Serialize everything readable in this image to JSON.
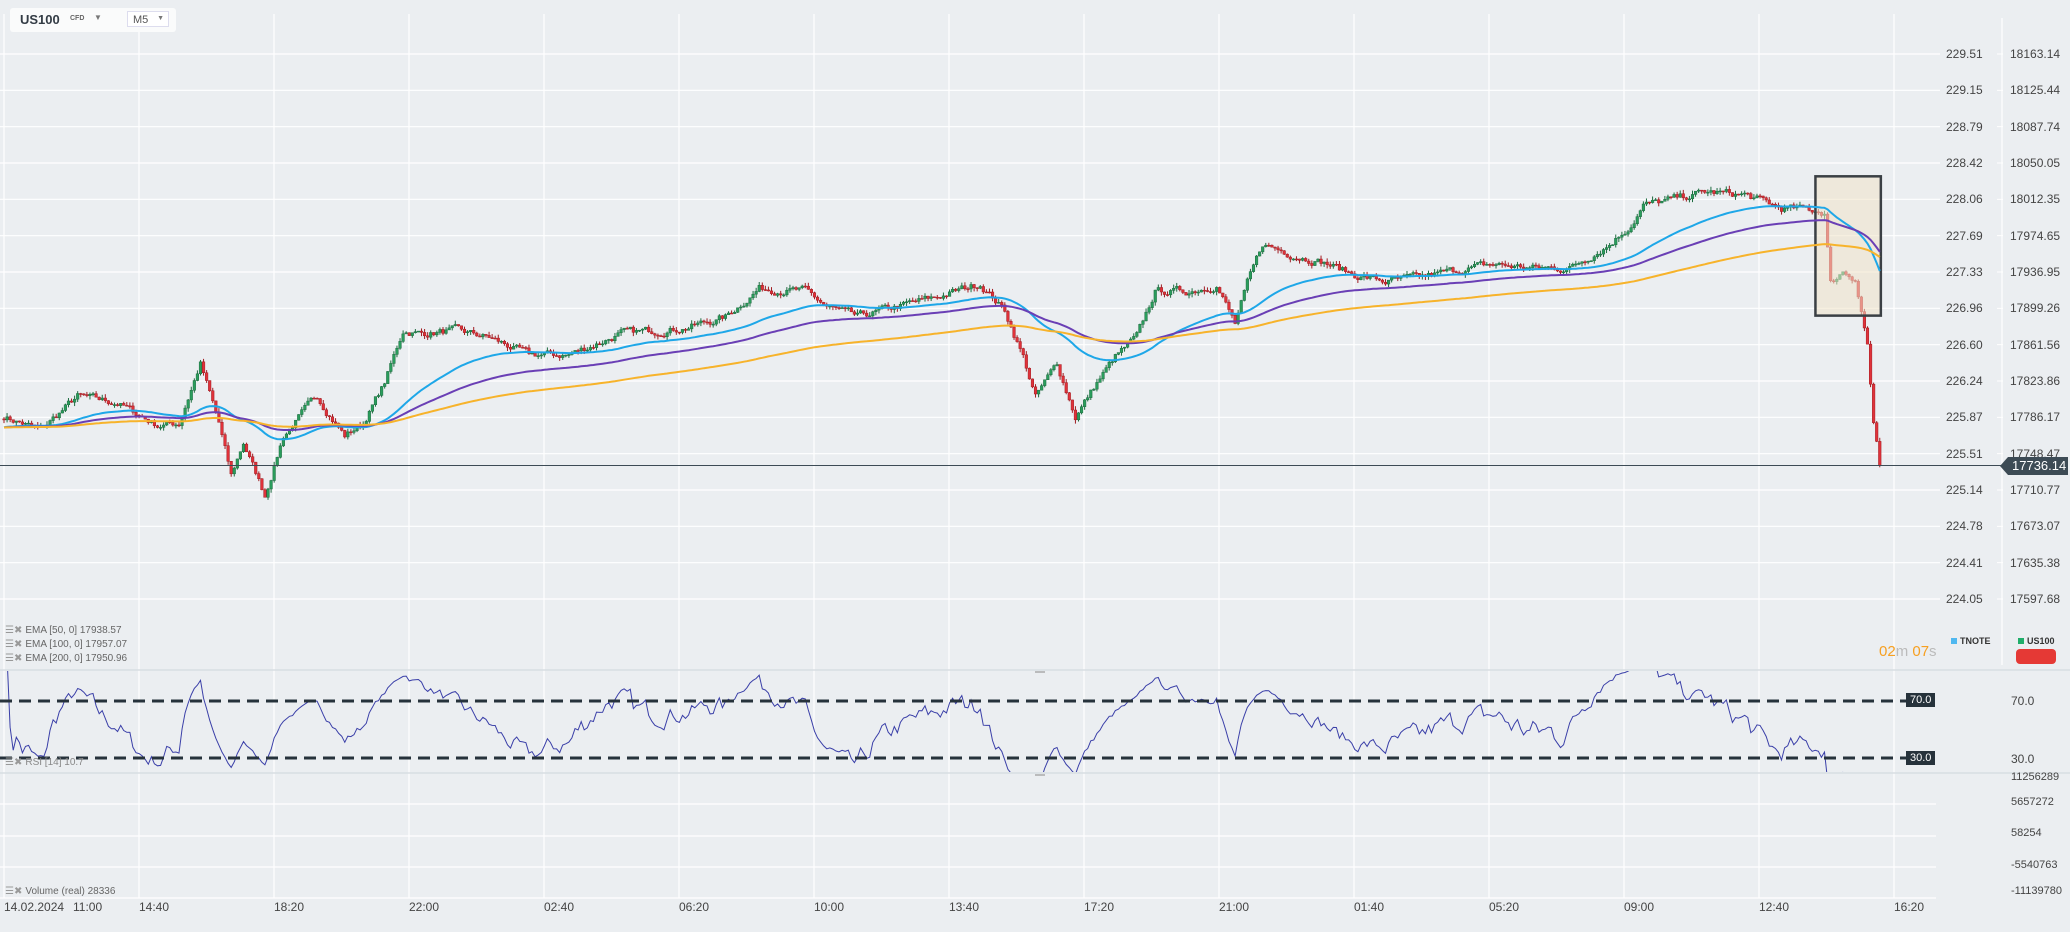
{
  "header": {
    "symbol": "US100",
    "type": "CFD",
    "timeframe": "M5",
    "dropdown_icon": "caret-down"
  },
  "axes": {
    "left_ticks": [
      "229.51",
      "229.15",
      "228.79",
      "228.42",
      "228.06",
      "227.69",
      "227.33",
      "226.96",
      "226.60",
      "226.24",
      "225.87",
      "225.51",
      "225.14",
      "224.78",
      "224.41",
      "224.05"
    ],
    "right_ticks": [
      "18163.14",
      "18125.44",
      "18087.74",
      "18050.05",
      "18012.35",
      "17974.65",
      "17936.95",
      "17899.26",
      "17861.56",
      "17823.86",
      "17786.17",
      "17748.47",
      "17710.77",
      "17673.07",
      "17635.38",
      "17597.68"
    ],
    "current_price": "17736.14",
    "time_labels": [
      "14.02.2024",
      "11:00",
      "14:40",
      "18:20",
      "22:00",
      "02:40",
      "06:20",
      "10:00",
      "13:40",
      "17:20",
      "21:00",
      "01:40",
      "05:20",
      "09:00",
      "12:40",
      "16:20"
    ]
  },
  "legend": {
    "ema": [
      {
        "label": "EMA",
        "params": "[50,  0]",
        "value": "17938.57"
      },
      {
        "label": "EMA",
        "params": "[100,  0]",
        "value": "17957.07"
      },
      {
        "label": "EMA",
        "params": "[200,  0]",
        "value": "17950.96"
      }
    ],
    "rsi": {
      "label": "RSI",
      "params": "[14]",
      "value": "10.7"
    },
    "volume": {
      "label": "Volume",
      "params": "(real)",
      "value": "28336"
    },
    "compare": [
      {
        "name": "TNOTE",
        "color": "#4fb8f0"
      },
      {
        "name": "US100",
        "color": "#1fae6a"
      }
    ]
  },
  "countdown": {
    "min": "02",
    "m": "m",
    "sec": "07",
    "s": "s"
  },
  "rsi_axis": {
    "upper": "70.0",
    "lower": "30.0"
  },
  "volume_axis": [
    "11256289",
    "5657272",
    "58254",
    "-5540763",
    "-11139780"
  ],
  "chart_data": {
    "type": "candlestick",
    "symbol": "US100",
    "timeframe": "M5",
    "y_range": [
      17597.68,
      18163.14
    ],
    "anchors_index_price": [
      [
        0,
        17787
      ],
      [
        12,
        17773
      ],
      [
        24,
        17808
      ],
      [
        37,
        17801
      ],
      [
        50,
        17778
      ],
      [
        57,
        17780
      ],
      [
        64,
        17842
      ],
      [
        70,
        17780
      ],
      [
        74,
        17725
      ],
      [
        78,
        17760
      ],
      [
        85,
        17705
      ],
      [
        91,
        17767
      ],
      [
        102,
        17808
      ],
      [
        111,
        17767
      ],
      [
        117,
        17780
      ],
      [
        124,
        17822
      ],
      [
        130,
        17876
      ],
      [
        136,
        17873
      ],
      [
        147,
        17876
      ],
      [
        158,
        17869
      ],
      [
        171,
        17851
      ],
      [
        184,
        17851
      ],
      [
        201,
        17873
      ],
      [
        222,
        17879
      ],
      [
        235,
        17890
      ],
      [
        246,
        17920
      ],
      [
        261,
        17917
      ],
      [
        268,
        17901
      ],
      [
        278,
        17890
      ],
      [
        291,
        17901
      ],
      [
        304,
        17911
      ],
      [
        318,
        17925
      ],
      [
        326,
        17897
      ],
      [
        332,
        17849
      ],
      [
        336,
        17807
      ],
      [
        343,
        17842
      ],
      [
        349,
        17787
      ],
      [
        356,
        17822
      ],
      [
        362,
        17849
      ],
      [
        369,
        17869
      ],
      [
        375,
        17917
      ],
      [
        386,
        17917
      ],
      [
        395,
        17924
      ],
      [
        401,
        17883
      ],
      [
        405,
        17924
      ],
      [
        410,
        17966
      ],
      [
        420,
        17955
      ],
      [
        429,
        17948
      ],
      [
        440,
        17934
      ],
      [
        450,
        17927
      ],
      [
        461,
        17931
      ],
      [
        472,
        17938
      ],
      [
        485,
        17945
      ],
      [
        498,
        17941
      ],
      [
        510,
        17941
      ],
      [
        523,
        17966
      ],
      [
        530,
        17986
      ],
      [
        534,
        18006
      ],
      [
        545,
        18013
      ],
      [
        554,
        18020
      ],
      [
        567,
        18017
      ],
      [
        579,
        18003
      ],
      [
        590,
        18001
      ],
      [
        593,
        17999
      ],
      [
        595,
        17925
      ],
      [
        599,
        17938
      ],
      [
        603,
        17931
      ],
      [
        607,
        17862
      ],
      [
        609,
        17780
      ],
      [
        611,
        17736.14
      ]
    ],
    "ema": [
      {
        "period": 50,
        "color": "#1ea7e8"
      },
      {
        "period": 100,
        "color": "#6a3fb5"
      },
      {
        "period": 200,
        "color": "#f7b32b"
      }
    ],
    "rsi": {
      "period": 14,
      "levels": [
        70,
        30
      ],
      "color": "#3a3fa8"
    },
    "colors": {
      "up": "#2a9d5c",
      "down": "#e0323a"
    },
    "annotation": {
      "type": "rectangle",
      "from_index": 592,
      "to_index": 612,
      "price_top": 18030,
      "price_bottom": 17900
    }
  }
}
